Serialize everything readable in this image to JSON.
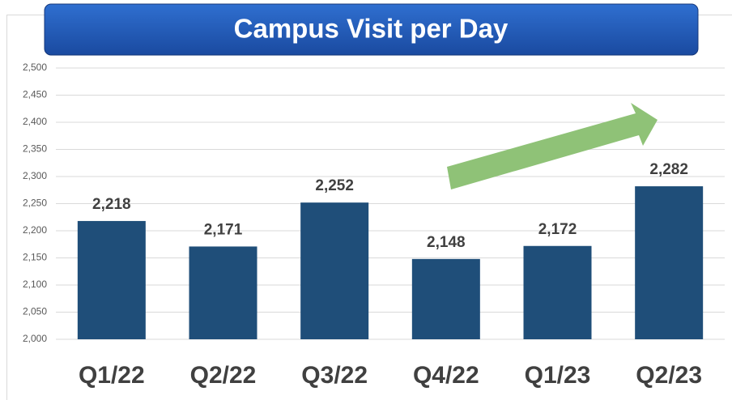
{
  "chart_data": {
    "type": "bar",
    "title": "Campus Visit per Day",
    "categories": [
      "Q1/22",
      "Q2/22",
      "Q3/22",
      "Q4/22",
      "Q1/23",
      "Q2/23"
    ],
    "values": [
      2218,
      2171,
      2252,
      2148,
      2172,
      2282
    ],
    "value_labels": [
      "2,218",
      "2,171",
      "2,252",
      "2,148",
      "2,172",
      "2,282"
    ],
    "color": "#1f4e79",
    "ylim": [
      2000,
      2500
    ],
    "yticks": [
      {
        "value": 2000,
        "label": "2,000"
      },
      {
        "value": 2050,
        "label": "2,050"
      },
      {
        "value": 2100,
        "label": "2,100"
      },
      {
        "value": 2150,
        "label": "2,150"
      },
      {
        "value": 2200,
        "label": "2,200"
      },
      {
        "value": 2250,
        "label": "2,250"
      },
      {
        "value": 2300,
        "label": "2,300"
      },
      {
        "value": 2350,
        "label": "2,350"
      },
      {
        "value": 2400,
        "label": "2,400"
      },
      {
        "value": 2450,
        "label": "2,450"
      },
      {
        "value": 2500,
        "label": "2,500"
      }
    ],
    "grid": true
  }
}
